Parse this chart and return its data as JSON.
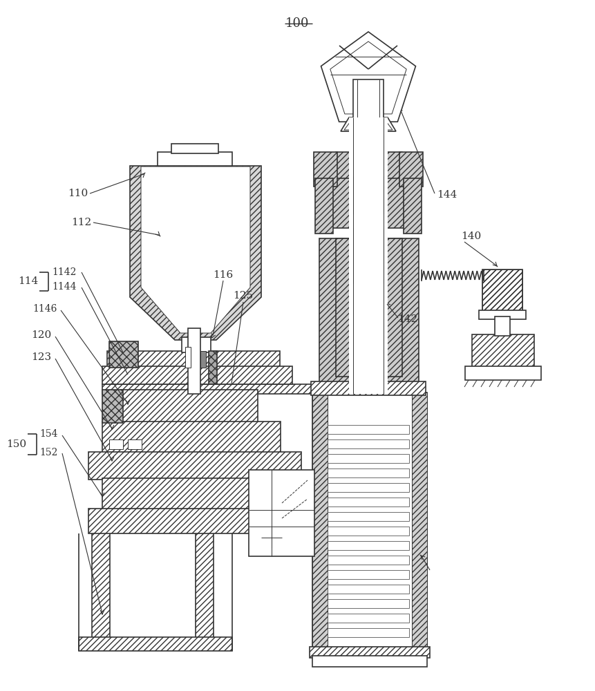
{
  "bg_color": "#ffffff",
  "line_color": "#333333",
  "lw": 1.2,
  "thin_lw": 0.7,
  "thick_lw": 2.0
}
